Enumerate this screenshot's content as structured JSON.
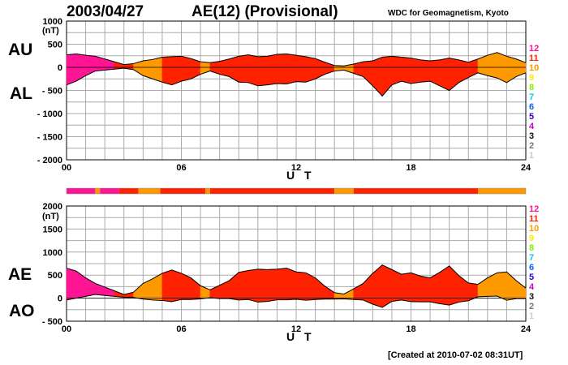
{
  "header": {
    "date": "2003/04/27",
    "title": "AE(12) (Provisional)",
    "credit": "WDC for Geomagnetism, Kyoto"
  },
  "footer": {
    "created": "[Created at 2010-07-02 08:31UT]"
  },
  "kp_legend": {
    "labels": [
      "12",
      "11",
      "10",
      "9",
      "8",
      "7",
      "6",
      "5",
      "4",
      "3",
      "2",
      "1"
    ],
    "colors": [
      "#ff1493",
      "#ff2200",
      "#ff9900",
      "#ffee00",
      "#88ee00",
      "#00ccee",
      "#0066ff",
      "#3300cc",
      "#cc00cc",
      "#111111",
      "#777777",
      "#cccccc"
    ]
  },
  "activity_segments": [
    {
      "start": 0.0,
      "end": 1.5,
      "level": "12"
    },
    {
      "start": 1.5,
      "end": 1.75,
      "level": "10"
    },
    {
      "start": 1.75,
      "end": 2.75,
      "level": "12"
    },
    {
      "start": 2.75,
      "end": 3.75,
      "level": "11"
    },
    {
      "start": 3.75,
      "end": 4.9,
      "level": "10"
    },
    {
      "start": 4.9,
      "end": 7.25,
      "level": "11"
    },
    {
      "start": 7.25,
      "end": 7.5,
      "level": "10"
    },
    {
      "start": 7.5,
      "end": 14.0,
      "level": "11"
    },
    {
      "start": 14.0,
      "end": 15.0,
      "level": "10"
    },
    {
      "start": 15.0,
      "end": 21.5,
      "level": "11"
    },
    {
      "start": 21.5,
      "end": 24.0,
      "level": "10"
    }
  ],
  "chart_data": [
    {
      "type": "area",
      "name": "AU/AL",
      "labels": {
        "upper": "AU",
        "lower": "AL"
      },
      "unit": "(nT)",
      "xlabel": "U T",
      "xlim": [
        0,
        24
      ],
      "ylim": [
        -2000,
        1000
      ],
      "yticks": [
        1000,
        500,
        0,
        -500,
        -1000,
        -1500,
        -2000
      ],
      "xticks": [
        "00",
        "06",
        "12",
        "18",
        "24"
      ],
      "grid": true,
      "upper_series": {
        "name": "AU",
        "x": [
          0,
          0.5,
          1,
          1.5,
          2,
          2.5,
          3,
          3.5,
          4,
          4.5,
          5,
          5.5,
          6,
          6.5,
          7,
          7.5,
          8,
          8.5,
          9,
          9.5,
          10,
          10.5,
          11,
          11.5,
          12,
          12.5,
          13,
          13.5,
          14,
          14.5,
          15,
          15.5,
          16,
          16.5,
          17,
          17.5,
          18,
          18.5,
          19,
          19.5,
          20,
          20.5,
          21,
          21.5,
          22,
          22.5,
          23,
          23.5,
          24
        ],
        "y": [
          270,
          290,
          260,
          240,
          180,
          120,
          60,
          80,
          140,
          170,
          220,
          230,
          240,
          190,
          120,
          100,
          130,
          180,
          240,
          270,
          230,
          240,
          280,
          290,
          260,
          230,
          190,
          110,
          40,
          30,
          70,
          120,
          140,
          220,
          240,
          220,
          200,
          160,
          140,
          160,
          200,
          160,
          110,
          180,
          260,
          320,
          240,
          180,
          100
        ]
      },
      "lower_series": {
        "name": "AL",
        "x": [
          0,
          0.5,
          1,
          1.5,
          2,
          2.5,
          3,
          3.5,
          4,
          4.5,
          5,
          5.5,
          6,
          6.5,
          7,
          7.5,
          8,
          8.5,
          9,
          9.5,
          10,
          10.5,
          11,
          11.5,
          12,
          12.5,
          13,
          13.5,
          14,
          14.5,
          15,
          15.5,
          16,
          16.5,
          17,
          17.5,
          18,
          18.5,
          19,
          19.5,
          20,
          20.5,
          21,
          21.5,
          22,
          22.5,
          23,
          23.5,
          24
        ],
        "y": [
          -380,
          -300,
          -180,
          -80,
          -60,
          -40,
          -20,
          -50,
          -180,
          -250,
          -320,
          -380,
          -300,
          -250,
          -150,
          -80,
          -150,
          -200,
          -320,
          -330,
          -400,
          -380,
          -350,
          -360,
          -310,
          -320,
          -250,
          -150,
          -80,
          -60,
          -130,
          -200,
          -400,
          -620,
          -380,
          -300,
          -350,
          -320,
          -300,
          -400,
          -500,
          -330,
          -220,
          -120,
          -180,
          -230,
          -330,
          -200,
          -120
        ]
      }
    },
    {
      "type": "area",
      "name": "AE/AO",
      "labels": {
        "upper": "AE",
        "lower": "AO"
      },
      "unit": "(nT)",
      "xlabel": "U T",
      "xlim": [
        0,
        24
      ],
      "ylim": [
        -500,
        2000
      ],
      "yticks": [
        2000,
        1500,
        1000,
        500,
        0,
        -500
      ],
      "xticks": [
        "00",
        "06",
        "12",
        "18",
        "24"
      ],
      "grid": true,
      "upper_series": {
        "name": "AE",
        "x": [
          0,
          0.5,
          1,
          1.5,
          2,
          2.5,
          3,
          3.5,
          4,
          4.5,
          5,
          5.5,
          6,
          6.5,
          7,
          7.5,
          8,
          8.5,
          9,
          9.5,
          10,
          10.5,
          11,
          11.5,
          12,
          12.5,
          13,
          13.5,
          14,
          14.5,
          15,
          15.5,
          16,
          16.5,
          17,
          17.5,
          18,
          18.5,
          19,
          19.5,
          20,
          20.5,
          21,
          21.5,
          22,
          22.5,
          23,
          23.5,
          24
        ],
        "y": [
          650,
          590,
          440,
          320,
          240,
          160,
          80,
          130,
          320,
          420,
          540,
          610,
          540,
          440,
          270,
          180,
          280,
          380,
          560,
          600,
          630,
          620,
          630,
          650,
          570,
          550,
          440,
          260,
          120,
          90,
          200,
          320,
          540,
          720,
          620,
          520,
          550,
          480,
          440,
          560,
          700,
          490,
          330,
          300,
          440,
          550,
          570,
          380,
          220
        ]
      },
      "lower_series": {
        "name": "AO",
        "x": [
          0,
          0.5,
          1,
          1.5,
          2,
          2.5,
          3,
          3.5,
          4,
          4.5,
          5,
          5.5,
          6,
          6.5,
          7,
          7.5,
          8,
          8.5,
          9,
          9.5,
          10,
          10.5,
          11,
          11.5,
          12,
          12.5,
          13,
          13.5,
          14,
          14.5,
          15,
          15.5,
          16,
          16.5,
          17,
          17.5,
          18,
          18.5,
          19,
          19.5,
          20,
          20.5,
          21,
          21.5,
          22,
          22.5,
          23,
          23.5,
          24
        ],
        "y": [
          -40,
          0,
          40,
          80,
          60,
          40,
          20,
          15,
          -20,
          -40,
          -50,
          -75,
          -30,
          -30,
          -15,
          10,
          -10,
          -10,
          -40,
          -30,
          -85,
          -70,
          -35,
          -35,
          -25,
          -45,
          -30,
          -20,
          -20,
          -15,
          -30,
          -40,
          -130,
          -200,
          -70,
          -40,
          -75,
          -80,
          -80,
          -120,
          -150,
          -85,
          -55,
          30,
          40,
          45,
          -45,
          -10,
          -10
        ]
      }
    }
  ]
}
